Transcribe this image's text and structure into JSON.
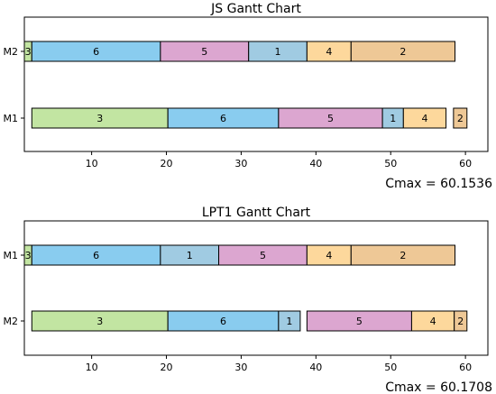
{
  "job_colors": {
    "1": "#a0cbe2",
    "2": "#eec896",
    "3": "#c2e5a2",
    "4": "#fdd89c",
    "5": "#dca6d0",
    "6": "#89ccef"
  },
  "chart_data": [
    {
      "type": "gantt",
      "title": "JS Gantt Chart",
      "xlim": [
        1,
        63
      ],
      "xticks": [
        10,
        20,
        30,
        40,
        50,
        60
      ],
      "machines": [
        "M2",
        "M1"
      ],
      "tasks": [
        {
          "machine": "M2",
          "job": "3",
          "start": 1.0,
          "end": 2.0
        },
        {
          "machine": "M2",
          "job": "6",
          "start": 2.0,
          "end": 19.2
        },
        {
          "machine": "M2",
          "job": "5",
          "start": 19.2,
          "end": 31.0
        },
        {
          "machine": "M2",
          "job": "1",
          "start": 31.0,
          "end": 38.8
        },
        {
          "machine": "M2",
          "job": "4",
          "start": 38.8,
          "end": 44.7
        },
        {
          "machine": "M2",
          "job": "2",
          "start": 44.7,
          "end": 58.6
        },
        {
          "machine": "M1",
          "job": "3",
          "start": 2.0,
          "end": 20.2
        },
        {
          "machine": "M1",
          "job": "6",
          "start": 20.2,
          "end": 35.0
        },
        {
          "machine": "M1",
          "job": "5",
          "start": 35.0,
          "end": 48.9
        },
        {
          "machine": "M1",
          "job": "1",
          "start": 48.9,
          "end": 51.7
        },
        {
          "machine": "M1",
          "job": "4",
          "start": 51.7,
          "end": 57.4
        },
        {
          "machine": "M1",
          "job": "2",
          "start": 58.4,
          "end": 60.2
        }
      ],
      "annotation": "Cmax = 60.1536"
    },
    {
      "type": "gantt",
      "title": "LPT1 Gantt Chart",
      "xlim": [
        1,
        63
      ],
      "xticks": [
        10,
        20,
        30,
        40,
        50,
        60
      ],
      "machines": [
        "M1",
        "M2"
      ],
      "tasks": [
        {
          "machine": "M1",
          "job": "3",
          "start": 1.0,
          "end": 2.0
        },
        {
          "machine": "M1",
          "job": "6",
          "start": 2.0,
          "end": 19.2
        },
        {
          "machine": "M1",
          "job": "1",
          "start": 19.2,
          "end": 27.0
        },
        {
          "machine": "M1",
          "job": "5",
          "start": 27.0,
          "end": 38.8
        },
        {
          "machine": "M1",
          "job": "4",
          "start": 38.8,
          "end": 44.7
        },
        {
          "machine": "M1",
          "job": "2",
          "start": 44.7,
          "end": 58.6
        },
        {
          "machine": "M2",
          "job": "3",
          "start": 2.0,
          "end": 20.2
        },
        {
          "machine": "M2",
          "job": "6",
          "start": 20.2,
          "end": 35.0
        },
        {
          "machine": "M2",
          "job": "1",
          "start": 35.0,
          "end": 37.9
        },
        {
          "machine": "M2",
          "job": "5",
          "start": 38.8,
          "end": 52.8
        },
        {
          "machine": "M2",
          "job": "4",
          "start": 52.8,
          "end": 58.5
        },
        {
          "machine": "M2",
          "job": "2",
          "start": 58.5,
          "end": 60.2
        }
      ],
      "annotation": "Cmax = 60.1708"
    }
  ]
}
